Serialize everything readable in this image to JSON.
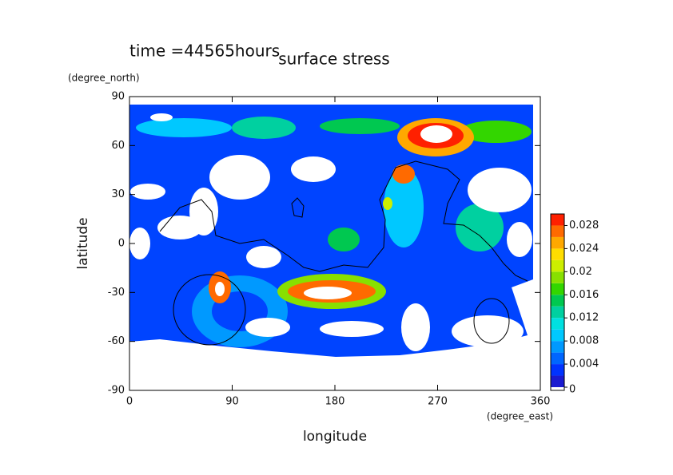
{
  "chart_data": {
    "type": "contour",
    "title": "surface stress",
    "subtitle": "time =44565hours",
    "x_label": "longitude",
    "x_units": "(degree_east)",
    "y_label": "latitude",
    "y_units": "(degree_north)",
    "xlim": [
      0,
      360
    ],
    "xticks": [
      0,
      90,
      180,
      270,
      360
    ],
    "ylim": [
      -90,
      90
    ],
    "yticks": [
      -90,
      -60,
      -30,
      0,
      30,
      60,
      90
    ],
    "levels": [
      0,
      0.002,
      0.004,
      0.006,
      0.008,
      0.01,
      0.012,
      0.014,
      0.016,
      0.018,
      0.02,
      0.022,
      0.024,
      0.026,
      0.028,
      0.03
    ],
    "colors": [
      "#1a1ad0",
      "#0033ff",
      "#0066ff",
      "#0099ff",
      "#00c8ff",
      "#00e0e0",
      "#00d0a0",
      "#00c850",
      "#33d600",
      "#88e000",
      "#ccee00",
      "#ffdd00",
      "#ffa800",
      "#ff6a00",
      "#ff2000"
    ],
    "colorbar_ticks": [
      0,
      0.004,
      0.008,
      0.012,
      0.016,
      0.02,
      0.024,
      0.028
    ]
  }
}
